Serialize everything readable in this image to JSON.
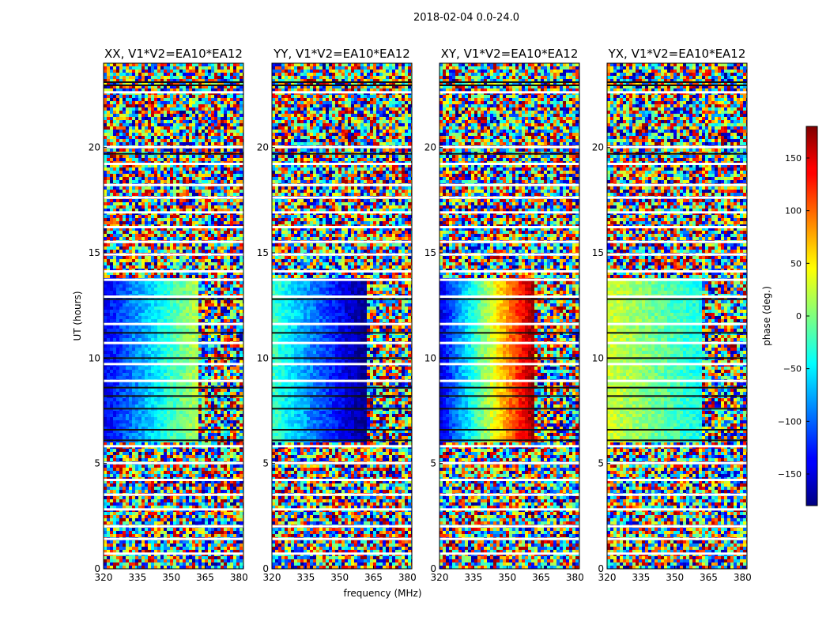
{
  "figure": {
    "suptitle": "2018-02-04 0.0-24.0"
  },
  "chart_data": {
    "type": "heatmap",
    "colormap": "jet",
    "x": {
      "label": "frequency (MHz)",
      "lim": [
        320,
        382
      ],
      "ticks": [
        "320",
        "335",
        "350",
        "365",
        "380"
      ]
    },
    "y": {
      "label": "UT (hours)",
      "lim": [
        0,
        24
      ],
      "ticks": [
        "0",
        "5",
        "10",
        "15",
        "20"
      ]
    },
    "colorbar": {
      "label": "phase (deg.)",
      "lim": [
        -180,
        180
      ],
      "ticks": [
        "150",
        "100",
        "50",
        "0",
        "−50",
        "−100",
        "−150"
      ]
    },
    "panels": [
      {
        "title": "XX, V1*V2=EA10*EA12",
        "coherent_phase": {
          "ut_range": [
            6.0,
            13.8
          ],
          "freq_range": [
            320,
            362
          ],
          "phase_start": -140,
          "phase_end": 20
        }
      },
      {
        "title": "YY, V1*V2=EA10*EA12",
        "coherent_phase": {
          "ut_range": [
            6.0,
            13.8
          ],
          "freq_range": [
            320,
            362
          ],
          "phase_start": -20,
          "phase_end": -180
        }
      },
      {
        "title": "XY, V1*V2=EA10*EA12",
        "coherent_phase": {
          "ut_range": [
            6.0,
            13.8
          ],
          "freq_range": [
            320,
            362
          ],
          "phase_start": -150,
          "phase_end": 175
        }
      },
      {
        "title": "YX, V1*V2=EA10*EA12",
        "coherent_phase": {
          "ut_range": [
            6.0,
            13.8
          ],
          "freq_range": [
            320,
            362
          ],
          "phase_start": 30,
          "phase_end": -40
        }
      }
    ]
  }
}
